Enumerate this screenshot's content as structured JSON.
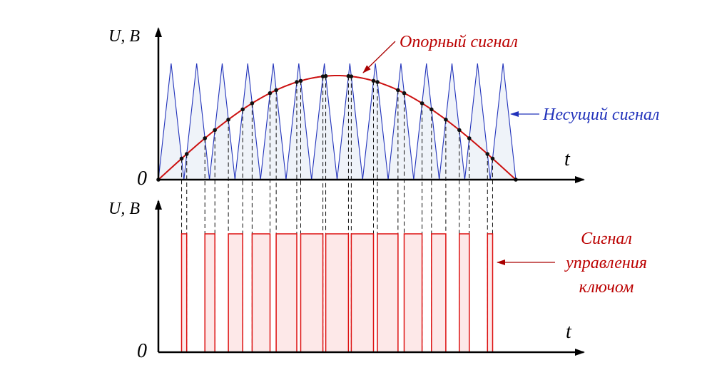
{
  "top_plot": {
    "y_axis_label": "U, B",
    "x_axis_label": "t",
    "origin_label": "0",
    "reference_label": "Опорный сигнал",
    "carrier_label": "Несущий сигнал",
    "reference_color": "#cc1111",
    "carrier_color": "#2233bb"
  },
  "bottom_plot": {
    "y_axis_label": "U, B",
    "x_axis_label": "t",
    "origin_label": "0",
    "control_label_lines": [
      "Сигнал",
      "управления",
      "ключом"
    ],
    "control_color": "#dd1111"
  },
  "carrier_periods": 14
}
